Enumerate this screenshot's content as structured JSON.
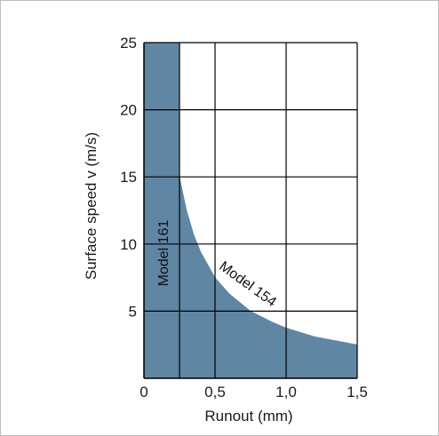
{
  "chart_data": {
    "type": "area",
    "title": "",
    "xlabel": "Runout (mm)",
    "ylabel": "Surface speed v (m/s)",
    "xlim": [
      0,
      1.5
    ],
    "ylim": [
      0,
      25
    ],
    "x_ticks": [
      "0",
      "0,5",
      "1,0",
      "1,5"
    ],
    "x_tick_values": [
      0,
      0.5,
      1.0,
      1.5
    ],
    "y_ticks": [
      "5",
      "10",
      "15",
      "20",
      "25"
    ],
    "y_tick_values": [
      5,
      10,
      15,
      20,
      25
    ],
    "grid": true,
    "series": [
      {
        "name": "Model 161",
        "x": [
          0,
          0.25
        ],
        "y_top": 25,
        "color": "#5f86a3"
      },
      {
        "name": "Model 154",
        "x": [
          0.25,
          0.3,
          0.35,
          0.4,
          0.5,
          0.6,
          0.75,
          0.9,
          1.0,
          1.2,
          1.5
        ],
        "y": [
          15.0,
          12.5,
          10.7,
          9.4,
          7.5,
          6.3,
          5.0,
          4.2,
          3.75,
          3.1,
          2.5
        ],
        "color": "#5f86a3"
      }
    ],
    "annotations": [
      "Model 161",
      "Model 154"
    ]
  }
}
